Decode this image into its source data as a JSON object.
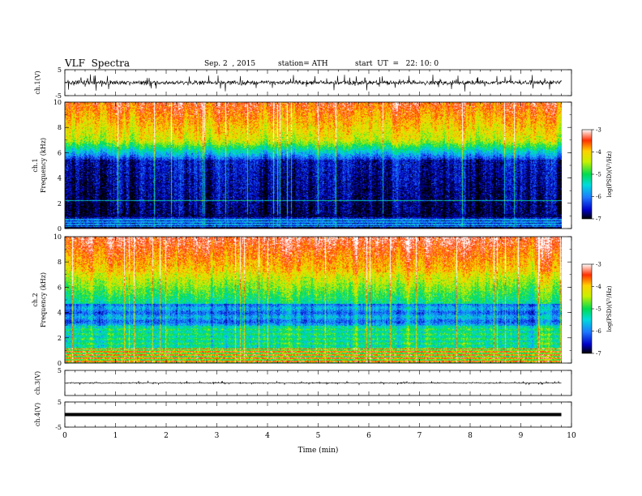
{
  "header": {
    "title": "VLF  Spectra",
    "date": "Sep. 2  , 2015",
    "station": "station= ATH",
    "start": "start  UT  =   22: 10: 0"
  },
  "chart_data": [
    {
      "type": "line",
      "panel": "ch1-waveform",
      "ylabel": "ch.1(V)",
      "ylim": [
        -5,
        5
      ],
      "yticks": [
        "5",
        "-5"
      ],
      "baseline": 0,
      "xlim": [
        0,
        10
      ]
    },
    {
      "type": "heatmap",
      "panel": "ch1-spectrogram",
      "ylabel": "ch.1\nFrequency  (kHz)",
      "ylim": [
        0,
        10
      ],
      "yticks": [
        "0",
        "2",
        "4",
        "6",
        "8",
        "10"
      ],
      "xlim": [
        0,
        9.8
      ],
      "colorbar": {
        "label": "log(PSD)(V²/Hz)",
        "range": [
          -7,
          -3
        ],
        "ticks": [
          "-3",
          "-4",
          "-5",
          "-6",
          "-7"
        ]
      }
    },
    {
      "type": "heatmap",
      "panel": "ch2-spectrogram",
      "ylabel": "ch.2\nFrequency  (kHz)",
      "ylim": [
        0,
        10
      ],
      "yticks": [
        "0",
        "2",
        "4",
        "6",
        "8",
        "10"
      ],
      "xlim": [
        0,
        9.8
      ],
      "colorbar": {
        "label": "log(PSD)(V²/Hz)",
        "range": [
          -7,
          -3
        ],
        "ticks": [
          "-3",
          "-4",
          "-5",
          "-6",
          "-7"
        ]
      }
    },
    {
      "type": "line",
      "panel": "ch3-waveform",
      "ylabel": "ch.3(V)",
      "ylim": [
        -5,
        5
      ],
      "yticks": [
        "5"
      ],
      "baseline": 0
    },
    {
      "type": "line",
      "panel": "ch4-waveform",
      "ylabel": "ch.4(V)",
      "ylim": [
        -5,
        5
      ],
      "yticks": [
        "5",
        "-5"
      ],
      "baseline": 0
    }
  ],
  "xaxis": {
    "label": "Time  (min)",
    "range": [
      0,
      10
    ],
    "ticks": [
      "0",
      "1",
      "2",
      "3",
      "4",
      "5",
      "6",
      "7",
      "8",
      "9",
      "10"
    ]
  },
  "colors": {
    "colormap": [
      "#000000",
      "#0000c8",
      "#1e78ff",
      "#00dcdc",
      "#00dc50",
      "#c8f000",
      "#ffd200",
      "#ff3000",
      "#ffffff"
    ]
  }
}
